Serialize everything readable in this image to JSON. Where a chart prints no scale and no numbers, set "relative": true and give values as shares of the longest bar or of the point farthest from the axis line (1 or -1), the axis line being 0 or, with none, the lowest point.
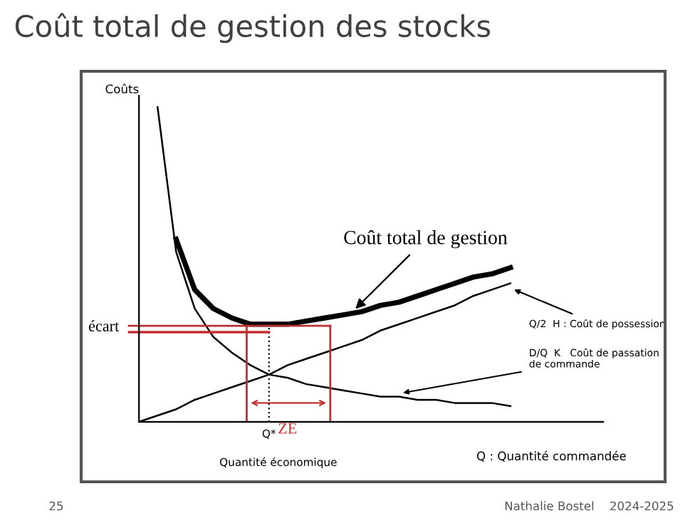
{
  "chart_data": {
    "type": "line",
    "title": "Coût total de gestion des stocks",
    "ylabel": "Coûts",
    "xlabel": "Q : Quantité commandée",
    "relative": true,
    "legend": false,
    "marker": "none",
    "line_style": "solid",
    "categories": [
      null,
      null,
      null,
      null,
      null,
      null,
      null,
      null,
      null,
      null,
      null,
      null,
      null,
      null,
      null,
      null,
      null,
      null,
      null,
      null,
      null
    ],
    "series": [
      {
        "color": "#000000",
        "values": [
          null,
          null,
          0.58,
          0.42,
          0.36,
          0.33,
          0.31,
          0.31,
          0.31,
          0.32,
          0.33,
          0.34,
          0.35,
          0.37,
          0.38,
          0.4,
          0.42,
          0.44,
          0.46,
          0.47,
          0.49
        ]
      },
      {
        "color": "#000000",
        "values": [
          0,
          0.02,
          0.04,
          0.07,
          0.09,
          0.11,
          0.13,
          0.15,
          0.18,
          0.2,
          0.22,
          0.24,
          0.26,
          0.29,
          0.31,
          0.33,
          0.35,
          0.37,
          0.4,
          0.42,
          0.44
        ]
      },
      {
        "color": "#000000",
        "values": [
          null,
          1.0,
          0.54,
          0.36,
          0.27,
          0.22,
          0.18,
          0.15,
          0.14,
          0.12,
          0.11,
          0.1,
          0.09,
          0.08,
          0.08,
          0.07,
          0.07,
          0.06,
          0.06,
          0.06,
          0.05
        ]
      }
    ],
    "annotations": [
      "Coût total de gestion",
      "Q/2  H : Coût de possession",
      "D/Q  K   Coût de passation de commande",
      "Q*",
      "Quantité économique",
      "écart",
      "ZE",
      "25",
      "Nathalie Bostel    2024-2025"
    ]
  }
}
